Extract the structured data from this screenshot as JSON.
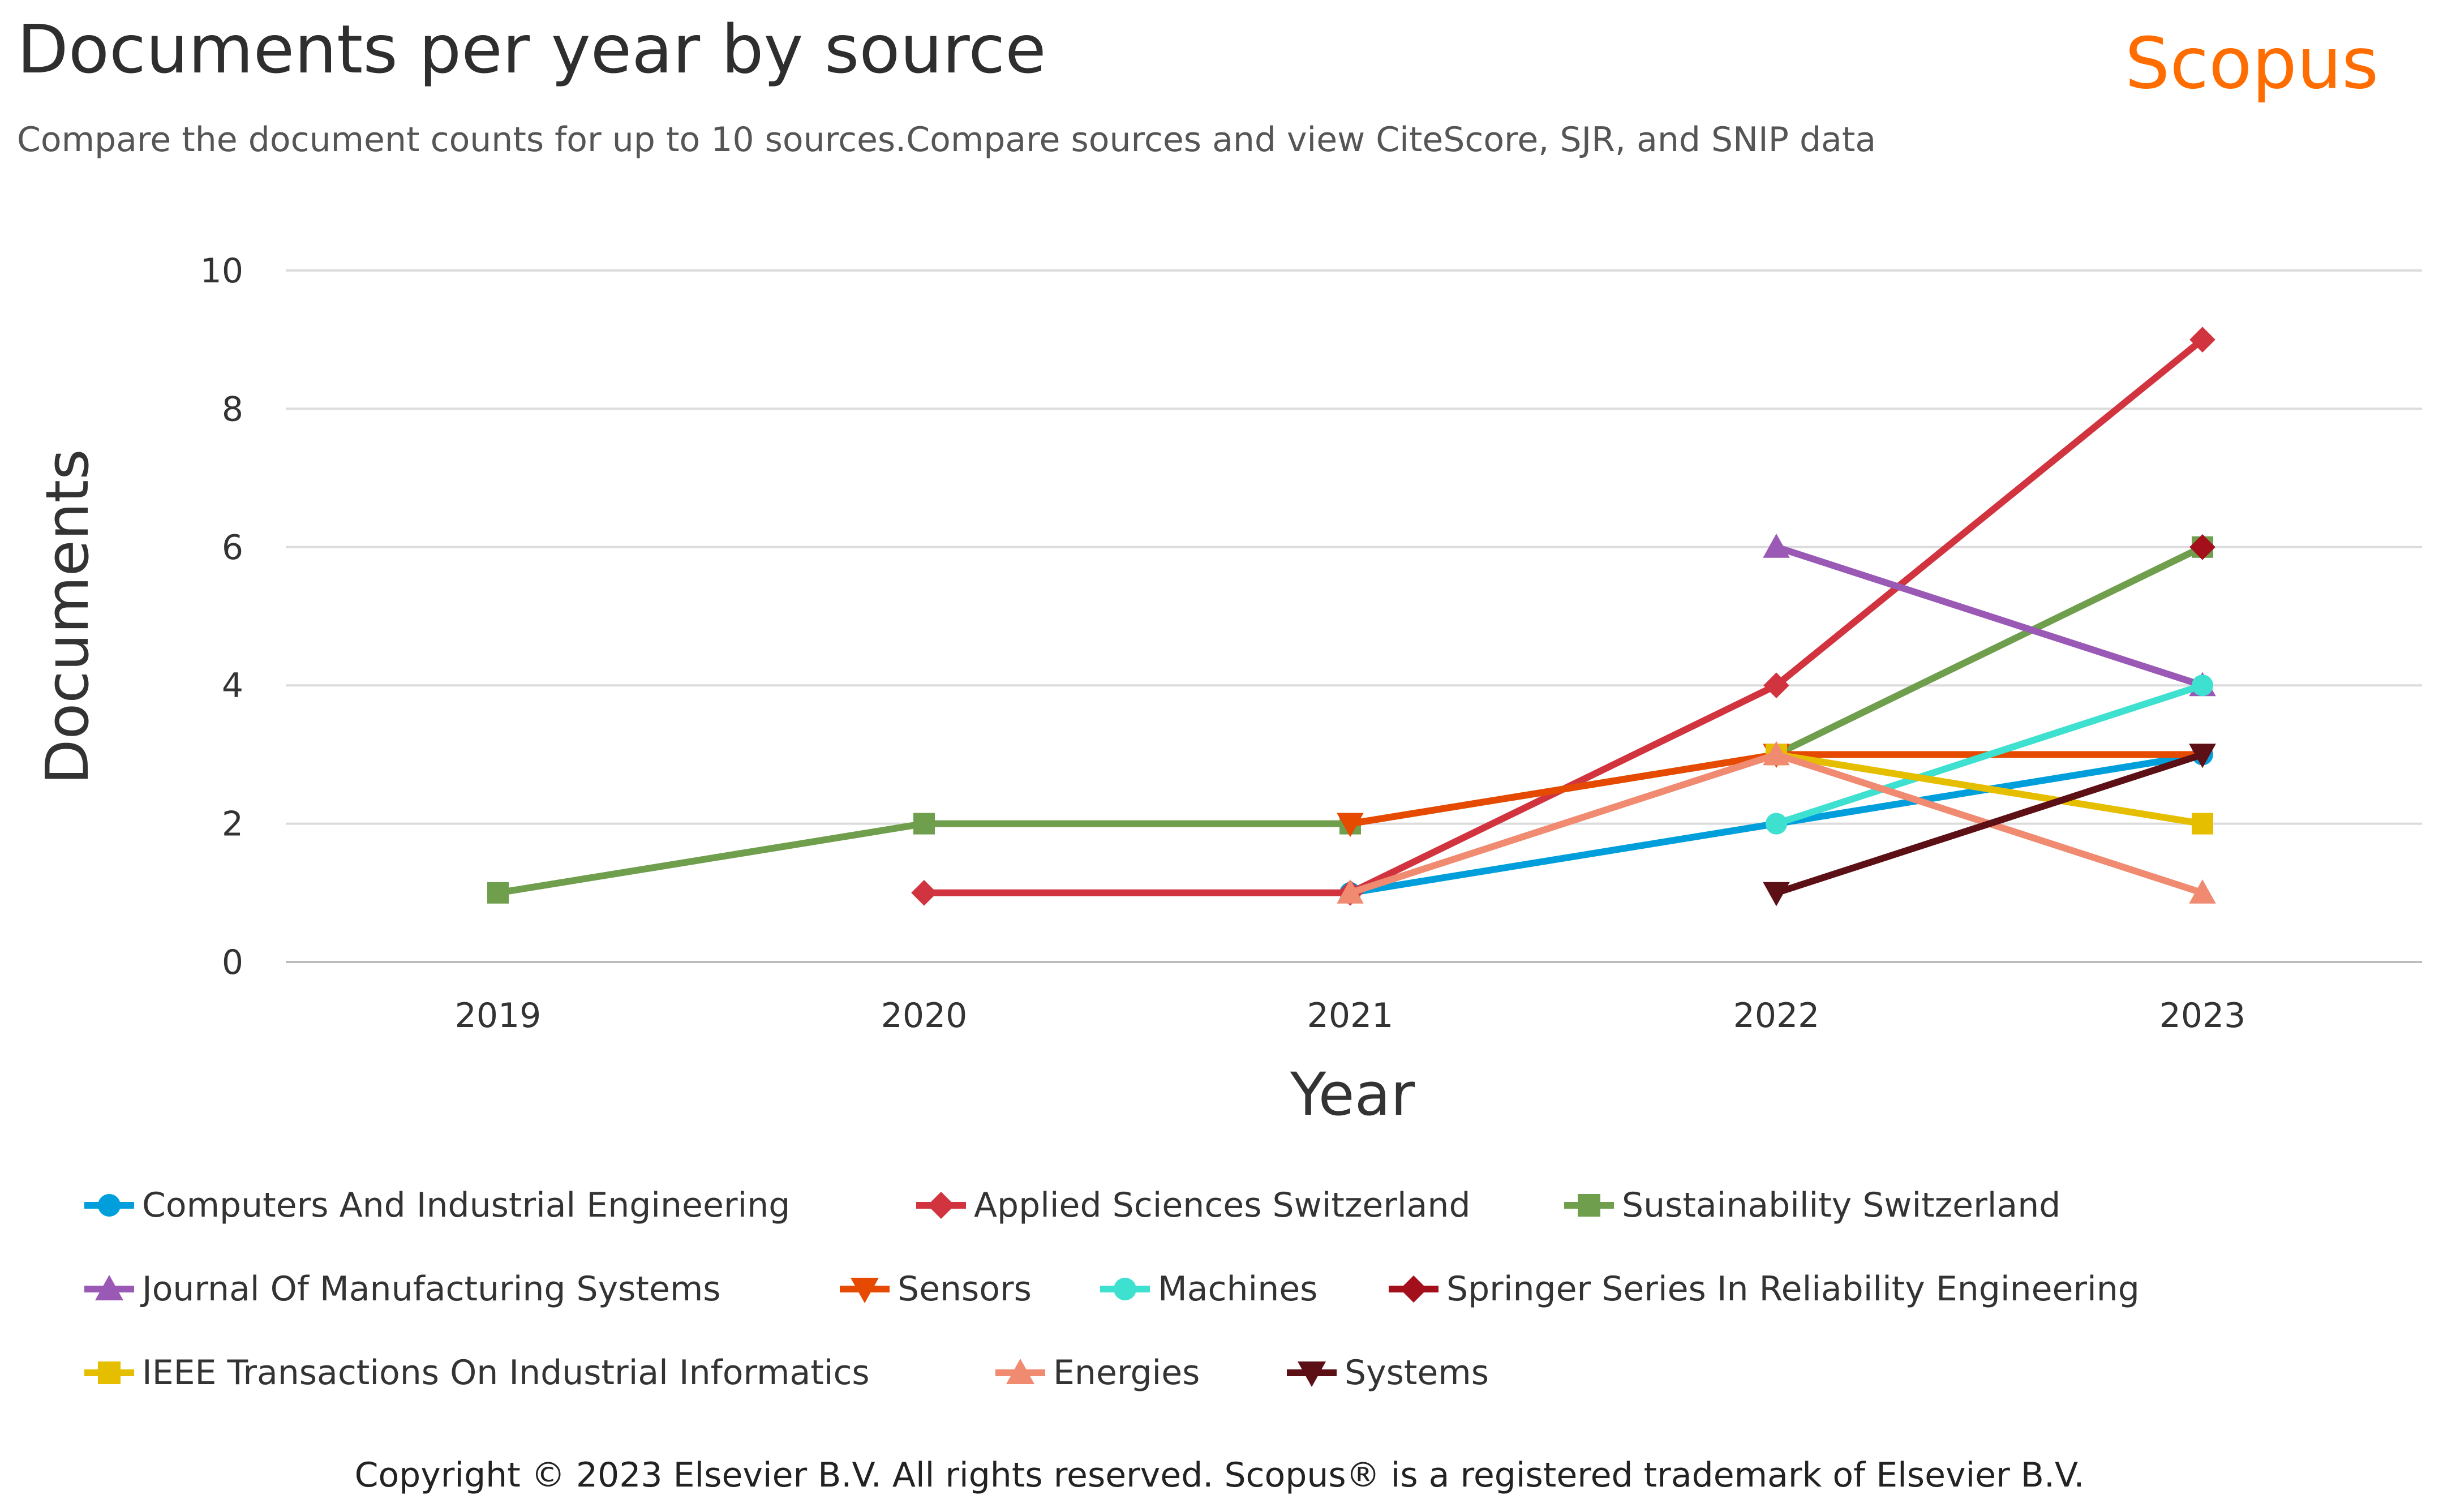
{
  "header": {
    "title": "Documents per year by source",
    "subtitle": "Compare the document counts for up to 10 sources.Compare sources and view CiteScore, SJR, and SNIP data",
    "brand": "Scopus"
  },
  "footer": {
    "copyright": "Copyright © 2023 Elsevier B.V. All rights reserved. Scopus® is a registered trademark of Elsevier B.V."
  },
  "chart_data": {
    "type": "line",
    "title": "Documents per year by source",
    "xlabel": "Year",
    "ylabel": "Documents",
    "x": [
      "2019",
      "2020",
      "2021",
      "2022",
      "2023"
    ],
    "ylim": [
      0,
      10
    ],
    "yticks": [
      0,
      2,
      4,
      6,
      8,
      10
    ],
    "grid": true,
    "legend_position": "bottom",
    "series": [
      {
        "name": "Computers And Industrial Engineering",
        "color": "#009fdb",
        "marker": "circle",
        "values": [
          null,
          null,
          1,
          2,
          3
        ]
      },
      {
        "name": "Applied Sciences Switzerland",
        "color": "#d1343e",
        "marker": "diamond",
        "values": [
          null,
          1,
          1,
          4,
          9
        ]
      },
      {
        "name": "Sustainability Switzerland",
        "color": "#6f9e4d",
        "marker": "square",
        "values": [
          1,
          2,
          2,
          3,
          6
        ]
      },
      {
        "name": "Journal Of Manufacturing Systems",
        "color": "#9b59b6",
        "marker": "triangle-up",
        "values": [
          null,
          null,
          null,
          6,
          4
        ]
      },
      {
        "name": "Sensors",
        "color": "#e64a00",
        "marker": "triangle-down",
        "values": [
          null,
          null,
          2,
          3,
          3
        ]
      },
      {
        "name": "Machines",
        "color": "#3ee0d0",
        "marker": "circle",
        "values": [
          null,
          null,
          null,
          2,
          4
        ]
      },
      {
        "name": "Springer Series In Reliability Engineering",
        "color": "#a3101c",
        "marker": "diamond",
        "values": [
          null,
          null,
          null,
          null,
          6
        ]
      },
      {
        "name": "IEEE Transactions On Industrial Informatics",
        "color": "#e6be00",
        "marker": "square",
        "values": [
          null,
          null,
          null,
          3,
          2
        ]
      },
      {
        "name": "Energies",
        "color": "#f08a70",
        "marker": "triangle-up",
        "values": [
          null,
          null,
          1,
          3,
          1
        ]
      },
      {
        "name": "Systems",
        "color": "#5c0f14",
        "marker": "triangle-down",
        "values": [
          null,
          null,
          null,
          1,
          3
        ]
      }
    ]
  }
}
